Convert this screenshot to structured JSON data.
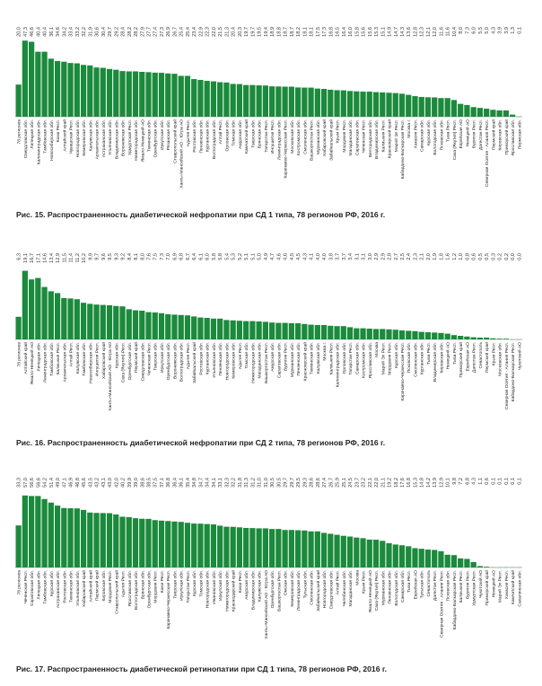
{
  "bar_color": "#1b8a3c",
  "chart_data": [
    {
      "type": "bar",
      "title": "Рис. 15. Распространенность диабетической нефропатии при СД 1 типа, 78 регионов РФ, 2016 г.",
      "xlabel": "",
      "ylabel": "",
      "ylim": [
        0,
        48
      ],
      "categories": [
        "78 регионов",
        "Свердловская обл.",
        "Липецкая обл.",
        "Калининградская обл.",
        "Тамбовская обл.",
        "Новосибирская обл.",
        "Коми Респ.",
        "Алтайский край",
        "Чувашская Респ.",
        "Новгородская обл.",
        "Кемеровская обл.",
        "Калужская обл.",
        "Архангельская обл.",
        "Астраханская обл.",
        "Ульяновская обл.",
        "Владимирская обл.",
        "Воронежская обл.",
        "Удмуртская Респ.",
        "Нижегородская обл.",
        "Ямало-Ненецкий АО",
        "Тюменская обл.",
        "Оренбургская обл.",
        "Иркутская обл.",
        "Рязанская обл.",
        "Ставропольский край",
        "Ханты-Мансийский АО - Югра АО",
        "Адыгея Респ.",
        "Ростовская обл.",
        "Пензенская обл.",
        "Курганская обл.",
        "Волгоградская обл.",
        "Алтай Респ.",
        "Орловская обл.",
        "Томская обл.",
        "Амурская обл.",
        "Камчатский край",
        "Тверская обл.",
        "Брянская обл.",
        "Татарстан Респ.",
        "Ингушетия Респ.",
        "Ленинградская обл.",
        "Карачаево-Черкесская Респ.",
        "Московская обл.",
        "Костромская обл.",
        "Смоленская обл.",
        "Башкортостан Респ.",
        "Мурманская обл.",
        "Хабаровский край",
        "Забайкальский край",
        "Крым Респ.",
        "Мордовия Респ.",
        "Магаданская обл.",
        "Саратовская обл.",
        "Чеченская Респ.",
        "Белгородская обл.",
        "Владимирская обл.",
        "Калмыкия Респ.",
        "Красноярский край",
        "Марий Эл Респ.",
        "Кабардино-Балкарская Респ.",
        "Москва г.",
        "Хакасия Респ.",
        "Самарская обл.",
        "Курская обл.",
        "Вологодская обл.",
        "Псковская обл.",
        "Тыва Респ.",
        "Саха (Якутия) Респ.",
        "Еврейская АО",
        "Ненецкий АО",
        "Бурятия Респ.",
        "Дагестан Респ.",
        "Северная Осетия - Алания Респ.",
        "Пермский край",
        "Кировская обл.",
        "Приморский край",
        "Ярославская обл.",
        "Пермская обл."
      ],
      "values": [
        20.0,
        47.3,
        46.6,
        40.4,
        40.4,
        36.1,
        34.6,
        34.2,
        33.4,
        33.2,
        32.2,
        31.9,
        30.6,
        30.4,
        29.7,
        29.2,
        28.4,
        28.2,
        28.2,
        27.9,
        27.7,
        27.4,
        27.3,
        26.9,
        26.7,
        25.4,
        25.4,
        23.4,
        22.9,
        22.3,
        22.0,
        21.5,
        21.3,
        20.4,
        20.3,
        19.7,
        19.7,
        19.5,
        19.4,
        18.9,
        18.8,
        18.7,
        18.7,
        18.2,
        18.1,
        18.1,
        17.5,
        17.3,
        16.8,
        16.5,
        16.4,
        16.0,
        15.8,
        15.6,
        15.6,
        15.3,
        15.1,
        14.9,
        14.7,
        14.3,
        13.6,
        12.8,
        12.3,
        12.1,
        12.0,
        11.6,
        11.6,
        10.4,
        8.0,
        7.3,
        6.0,
        5.5,
        5.0,
        4.3,
        3.9,
        3.9,
        1.3,
        0.1
      ],
      "value_labels": [
        "20,0",
        "47,3",
        "46,6",
        "40,4",
        "40,4",
        "36,1",
        "34,6",
        "34,2",
        "33,4",
        "33,2",
        "32,2",
        "31,9",
        "30,6",
        "30,4",
        "29,7",
        "29,2",
        "28,4",
        "28,2",
        "28,2",
        "27,9",
        "27,7",
        "27,4",
        "27,3",
        "26,9",
        "26,7",
        "25,4",
        "25,4",
        "23,4",
        "22,9",
        "22,3",
        "22,0",
        "21,5",
        "21,3",
        "20,4",
        "20,3",
        "19,7",
        "19,7",
        "19,5",
        "19,4",
        "18,9",
        "18,8",
        "18,7",
        "18,7",
        "18,2",
        "18,1",
        "18,1",
        "17,5",
        "17,3",
        "16,8",
        "16,5",
        "16,4",
        "16,0",
        "15,8",
        "15,6",
        "15,6",
        "15,3",
        "15,1",
        "14,9",
        "14,7",
        "14,3",
        "13,6",
        "12,8",
        "12,3",
        "12,1",
        "12,0",
        "11,6",
        "11,6",
        "10,4",
        "8,0",
        "7,3",
        "6,0",
        "5,5",
        "5,0",
        "4,3",
        "3,9",
        "3,9",
        "1,3",
        "0,1"
      ]
    },
    {
      "type": "bar",
      "title": "Рис. 16. Распространенность диабетической нефропатии при СД 2 типа, 78 регионов РФ, 2016 г.",
      "xlabel": "",
      "ylabel": "",
      "ylim": [
        0,
        21
      ],
      "categories": [
        "78 регионов",
        "Алтайский край",
        "Ямало-Ненецкий АО",
        "Липецкая обл.",
        "Ленинградская обл.",
        "Тамбовская обл.",
        "Калмыкия Респ.",
        "Архангельская обл.",
        "Алтай Респ.",
        "Калужская обл.",
        "Тамбовская обл.",
        "Новосибирская обл.",
        "Ингушетия Респ.",
        "Хабаровский край",
        "Ханты-Мансийский АО - Югра АО",
        "Курская обл.",
        "Саха (Якутия) Респ.",
        "Оренбургская обл.",
        "Пермский край",
        "Свердловская обл.",
        "Чеченская Респ.",
        "Тверская обл.",
        "Иркутская обл.",
        "Оренбургская обл.",
        "Воронежская обл.",
        "Волгоградская обл.",
        "Адыгея Респ.",
        "Забайкальский край",
        "Ростовская обл.",
        "Курганская обл.",
        "Ульяновская обл.",
        "Пензенская обл.",
        "Новгородская обл.",
        "Кемеровская обл.",
        "Адыгея Респ.",
        "Томская обл.",
        "Нижегородская обл.",
        "Магаданская обл.",
        "Башкортостан Респ.",
        "Амурская обл.",
        "Саратовская обл.",
        "Бурятия Респ.",
        "Мурманская обл.",
        "Пензенская обл.",
        "Красноярский край",
        "Тюменская обл.",
        "Калужская обл.",
        "Москва г.",
        "Калмыкия Респ.",
        "Калининградская обл.",
        "Орловская обл.",
        "Татарстан Респ.",
        "Самарская обл.",
        "Костромская обл.",
        "Ярославская обл.",
        "Москва",
        "Марий Эл Респ.",
        "Мордовия Респ.",
        "Курская обл.",
        "Карачаево-Черкесская Респ.",
        "Псковская обл.",
        "Смоленская обл.",
        "Курганская обл.",
        "Тыва Респ.",
        "Владимирская обл.",
        "Кировская обл.",
        "Ненецкий АО",
        "Тыва Респ.",
        "Приморский край",
        "Еврейская АО",
        "Дагестан Респ.",
        "Севастополь",
        "Пермский край",
        "Крым Респ.",
        "Московская обл.",
        "Северная Осетия - Алания Респ.",
        "Кабардино-Балкарская Респ.",
        "Чукотский АО"
      ],
      "values": [
        6.3,
        19.1,
        16.7,
        17.1,
        14.6,
        13.4,
        12.9,
        11.5,
        11.4,
        11.2,
        10.2,
        9.9,
        9.7,
        9.6,
        9.5,
        9.3,
        9.2,
        8.4,
        8.1,
        8.0,
        7.6,
        7.5,
        7.3,
        7.0,
        6.9,
        6.8,
        6.7,
        6.4,
        6.1,
        6.0,
        5.8,
        5.8,
        5.4,
        5.3,
        5.2,
        5.1,
        5.1,
        5.0,
        4.9,
        4.7,
        4.6,
        4.6,
        4.5,
        4.5,
        4.3,
        4.1,
        4.0,
        4.0,
        3.8,
        3.7,
        3.7,
        3.4,
        3.1,
        3.1,
        3.0,
        2.9,
        2.9,
        2.8,
        2.7,
        2.5,
        2.4,
        2.3,
        2.1,
        2.0,
        1.9,
        1.8,
        1.6,
        1.2,
        1.0,
        0.8,
        0.6,
        0.5,
        0.5,
        0.3,
        0.2,
        0.2,
        0.0,
        0.0
      ],
      "value_labels": [
        "6,3",
        "19,1",
        "16,7",
        "17,1",
        "14,6",
        "13,4",
        "12,9",
        "11,5",
        "11,4",
        "11,2",
        "10,2",
        "9,9",
        "9,7",
        "9,6",
        "9,5",
        "9,3",
        "9,2",
        "8,4",
        "8,1",
        "8,0",
        "7,6",
        "7,5",
        "7,3",
        "7,0",
        "6,9",
        "6,8",
        "6,7",
        "6,4",
        "6,1",
        "6,0",
        "5,8",
        "5,8",
        "5,4",
        "5,3",
        "5,2",
        "5,1",
        "5,1",
        "5,0",
        "4,9",
        "4,7",
        "4,6",
        "4,6",
        "4,5",
        "4,5",
        "4,3",
        "4,1",
        "4,0",
        "4,0",
        "3,8",
        "3,7",
        "3,7",
        "3,4",
        "3,1",
        "3,1",
        "3,0",
        "2,9",
        "2,9",
        "2,8",
        "2,7",
        "2,5",
        "2,4",
        "2,3",
        "2,1",
        "2,0",
        "1,9",
        "1,8",
        "1,6",
        "1,2",
        "1,0",
        "0,8",
        "0,6",
        "0,5",
        "0,5",
        "0,3",
        "0,2",
        "0,2",
        "0,0",
        "0,0"
      ]
    },
    {
      "type": "bar",
      "title": "Рис. 17. Распространенность диабетической ретинопатии при СД 1 типа, 78 регионов РФ, 2016 г.",
      "xlabel": "",
      "ylabel": "",
      "ylim": [
        0,
        64
      ],
      "categories": [
        "78 регионов",
        "Чеченская Респ.",
        "Саратовская обл.",
        "Липецкая обл.",
        "Тамбовская обл.",
        "Курская обл.",
        "Астраханская обл.",
        "Ростовская обл.",
        "Тюменская обл.",
        "Ульяновская обл.",
        "Хабаровский край",
        "Алтайский край",
        "Пермский край",
        "Кировская обл.",
        "Мордовия Респ.",
        "Ставропольский край",
        "Адыгея Респ.",
        "Ярославская обл.",
        "Волгоградская обл.",
        "Брянская обл.",
        "Оренбургская обл.",
        "Мордовия Респ.",
        "Коми Респ.",
        "Карачаево-Черкесская Респ.",
        "Тверская обл.",
        "Иркутская обл.",
        "Татарстан Респ.",
        "Курская обл.",
        "Томская обл.",
        "Новгородская обл.",
        "Ивановская обл.",
        "Иркутская обл.",
        "Нижегородская обл.",
        "Краснодарский край",
        "Коми Респ.",
        "Амурская обл.",
        "Владимирская обл.",
        "Калужская обл.",
        "Ханты-Мансийский АО - Югра АО",
        "Оренбургская обл.",
        "Башкортостан Респ.",
        "Омская обл.",
        "Кемеровская обл.",
        "Ленинградская обл.",
        "Тульская обл.",
        "Смоленская обл.",
        "Забайкальский край",
        "Новгородская обл.",
        "Свердловская обл.",
        "Алтай Респ.",
        "Челябинская обл.",
        "Магаданская обл.",
        "Москва",
        "Крым Респ.",
        "Ямало-Ненецкий АО",
        "Саха (Якутия) Респ.",
        "Мурманская обл.",
        "Пензенская обл.",
        "Вологодская обл.",
        "Самарская обл.",
        "Тыва Респ.",
        "Еврейская АО",
        "Тульская обл.",
        "Севастополь",
        "Дагестан Респ.",
        "Северная Осетия - Алания Респ.",
        "Псковская обл.",
        "Кабардино-Балкарская Респ.",
        "Калмыкия Респ.",
        "Бурятия Респ.",
        "Удмуртская Респ.",
        "Чукотский АО",
        "Приморский край",
        "Ненецкий АО",
        "Марий Эл Респ.",
        "Хакасия Респ.",
        "Камчатский край",
        "Сахалинская обл."
      ],
      "values": [
        33.3,
        57.0,
        56.6,
        56.6,
        54.2,
        51.4,
        49.0,
        47.1,
        46.9,
        46.8,
        45.6,
        43.5,
        43.2,
        43.1,
        43.0,
        42.0,
        40.2,
        39.9,
        39.0,
        38.6,
        38.5,
        37.5,
        37.1,
        36.8,
        36.4,
        36.1,
        35.4,
        34.8,
        34.7,
        34.4,
        34.1,
        33.1,
        32.3,
        32.2,
        31.8,
        31.3,
        31.2,
        31.0,
        31.0,
        30.5,
        30.5,
        29.7,
        29.7,
        29.5,
        29.3,
        28.6,
        28.6,
        27.4,
        26.7,
        25.9,
        25.1,
        24.5,
        23.7,
        23.2,
        22.1,
        22.0,
        21.1,
        19.2,
        18.2,
        17.6,
        16.8,
        15.3,
        14.8,
        14.2,
        13.9,
        12.9,
        10.1,
        9.8,
        7.2,
        6.8,
        4.3,
        1.1,
        0.6,
        0.1,
        0.1,
        0.1,
        0.1,
        0.1
      ],
      "value_labels": [
        "33,3",
        "57,0",
        "56,6",
        "56,6",
        "54,2",
        "51,4",
        "49,0",
        "47,1",
        "46,9",
        "46,8",
        "45,6",
        "43,5",
        "43,2",
        "43,1",
        "43,0",
        "42,0",
        "40,2",
        "39,9",
        "39,0",
        "38,6",
        "38,5",
        "37,5",
        "37,1",
        "36,8",
        "36,4",
        "36,1",
        "35,4",
        "34,8",
        "34,7",
        "34,4",
        "34,1",
        "33,1",
        "32,3",
        "32,2",
        "31,8",
        "31,3",
        "31,2",
        "31,0",
        "31,0",
        "30,5",
        "30,5",
        "29,7",
        "29,7",
        "29,5",
        "29,3",
        "28,6",
        "28,6",
        "27,4",
        "26,7",
        "25,9",
        "25,1",
        "24,5",
        "23,7",
        "23,2",
        "22,1",
        "22,0",
        "21,1",
        "19,2",
        "18,2",
        "17,6",
        "16,8",
        "15,3",
        "14,8",
        "14,2",
        "13,9",
        "12,9",
        "10,1",
        "9,8",
        "7,2",
        "6,8",
        "4,3",
        "1,1",
        "0,6",
        "0,1",
        "0,1",
        "0,1",
        "0,1",
        "0,1"
      ]
    }
  ]
}
